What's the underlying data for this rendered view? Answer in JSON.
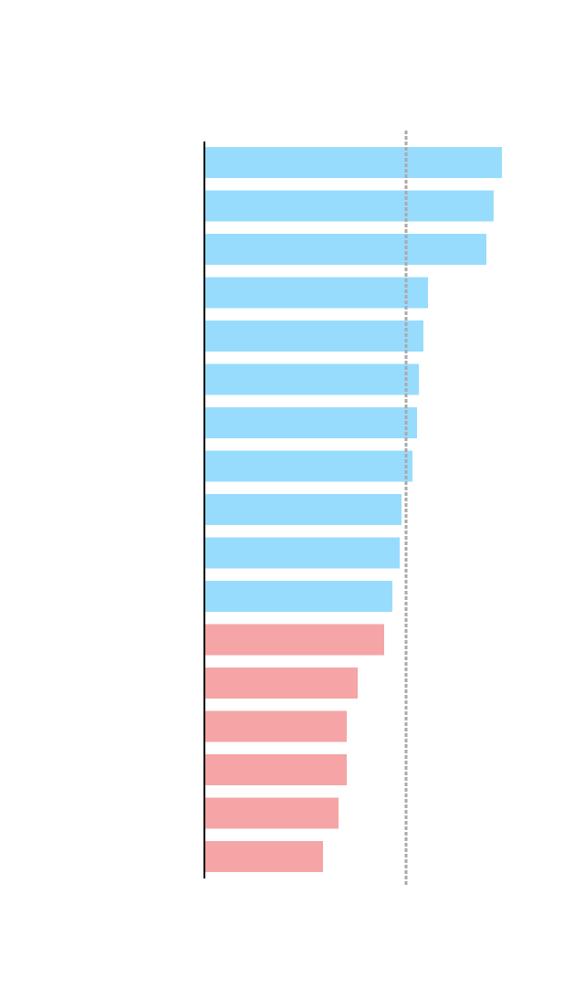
{
  "chart_data": {
    "type": "bar",
    "orientation": "horizontal",
    "categories": [
      null,
      null,
      null,
      null,
      null,
      null,
      null,
      null,
      null,
      null,
      null,
      null,
      null,
      null,
      null,
      null,
      null
    ],
    "values": [
      326,
      317,
      309,
      245,
      240,
      235,
      233,
      228,
      216,
      214,
      206,
      197,
      168,
      156,
      156,
      147,
      130
    ],
    "colors": [
      "#97dcfd",
      "#97dcfd",
      "#97dcfd",
      "#97dcfd",
      "#97dcfd",
      "#97dcfd",
      "#97dcfd",
      "#97dcfd",
      "#97dcfd",
      "#97dcfd",
      "#97dcfd",
      "#f5a5a6",
      "#f5a5a6",
      "#f5a5a6",
      "#f5a5a6",
      "#f5a5a6",
      "#f5a5a6"
    ],
    "xlim": [
      0,
      416
    ],
    "reference_line": 221,
    "reference_line_color": "#aaaaaa"
  }
}
